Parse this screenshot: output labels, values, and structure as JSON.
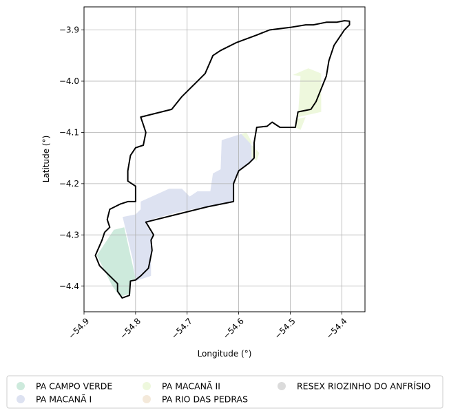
{
  "chart_data": {
    "type": "map",
    "xlabel": "Longitude (°)",
    "ylabel": "Latitude (°)",
    "xlim": [
      -54.9,
      -54.355
    ],
    "ylim": [
      -4.45,
      -3.855
    ],
    "xticks": [
      -54.9,
      -54.8,
      -54.7,
      -54.6,
      -54.5,
      -54.4
    ],
    "xtick_labels": [
      "−54.9",
      "−54.8",
      "−54.7",
      "−54.6",
      "−54.5",
      "−54.4"
    ],
    "yticks": [
      -3.9,
      -4.0,
      -4.1,
      -4.2,
      -4.3,
      -4.4
    ],
    "ytick_labels": [
      "−3.9",
      "−4.0",
      "−4.1",
      "−4.2",
      "−4.3",
      "−4.4"
    ],
    "grid": true,
    "legend_position": "bottom",
    "legend": [
      {
        "name": "PA CAMPO VERDE",
        "color": "#cdeadc"
      },
      {
        "name": "PA MACANÃ I",
        "color": "#dde2f1"
      },
      {
        "name": "PA MACANÃ II",
        "color": "#eef8dd"
      },
      {
        "name": "PA RIO DAS PEDRAS",
        "color": "#f4e9da"
      },
      {
        "name": "RESEX RIOZINHO DO ANFRÍSIO",
        "color": "#dbdbdb"
      }
    ],
    "regions": [
      {
        "name": "PA CAMPO VERDE",
        "color": "#cdeadc",
        "polygons": [
          [
            [
              -54.842,
              -4.29
            ],
            [
              -54.822,
              -4.285
            ],
            [
              -54.8,
              -4.385
            ],
            [
              -54.81,
              -4.39
            ],
            [
              -54.81,
              -4.415
            ],
            [
              -54.83,
              -4.42
            ],
            [
              -54.845,
              -4.4
            ],
            [
              -54.875,
              -4.34
            ]
          ]
        ]
      },
      {
        "name": "PA MACANÃ I",
        "color": "#dde2f1",
        "polygons": [
          [
            [
              -54.825,
              -4.265
            ],
            [
              -54.8,
              -4.26
            ],
            [
              -54.79,
              -4.25
            ],
            [
              -54.79,
              -4.235
            ],
            [
              -54.735,
              -4.21
            ],
            [
              -54.71,
              -4.21
            ],
            [
              -54.695,
              -4.225
            ],
            [
              -54.68,
              -4.215
            ],
            [
              -54.655,
              -4.215
            ],
            [
              -54.65,
              -4.18
            ],
            [
              -54.635,
              -4.172
            ],
            [
              -54.633,
              -4.115
            ],
            [
              -54.595,
              -4.103
            ],
            [
              -54.585,
              -4.104
            ],
            [
              -54.565,
              -4.15
            ],
            [
              -54.58,
              -4.16
            ],
            [
              -54.6,
              -4.175
            ],
            [
              -54.61,
              -4.2
            ],
            [
              -54.61,
              -4.235
            ],
            [
              -54.665,
              -4.245
            ],
            [
              -54.715,
              -4.255
            ],
            [
              -54.77,
              -4.27
            ],
            [
              -54.78,
              -4.28
            ],
            [
              -54.767,
              -4.3
            ],
            [
              -54.77,
              -4.33
            ],
            [
              -54.77,
              -4.38
            ],
            [
              -54.8,
              -4.39
            ],
            [
              -54.805,
              -4.35
            ]
          ]
        ]
      },
      {
        "name": "PA MACANÃ II",
        "color": "#eef8dd",
        "polygons": [
          [
            [
              -54.595,
              -4.103
            ],
            [
              -54.585,
              -4.1
            ],
            [
              -54.575,
              -4.118
            ],
            [
              -54.575,
              -4.15
            ],
            [
              -54.565,
              -4.155
            ],
            [
              -54.56,
              -4.14
            ]
          ],
          [
            [
              -54.495,
              -3.988
            ],
            [
              -54.465,
              -3.975
            ],
            [
              -54.44,
              -3.985
            ],
            [
              -54.44,
              -4.06
            ],
            [
              -54.485,
              -4.07
            ],
            [
              -54.48,
              -3.99
            ]
          ],
          [
            [
              -54.49,
              -4.075
            ],
            [
              -54.49,
              -4.09
            ],
            [
              -54.48,
              -4.095
            ],
            [
              -54.47,
              -4.07
            ]
          ]
        ]
      },
      {
        "name": "PA RIO DAS PEDRAS",
        "color": "#f4e9da",
        "polygons": []
      },
      {
        "name": "RESEX RIOZINHO DO ANFRÍSIO",
        "color": "#dbdbdb",
        "polygons": []
      }
    ],
    "boundary": [
      [
        -54.826,
        -4.423
      ],
      [
        -54.812,
        -4.418
      ],
      [
        -54.81,
        -4.39
      ],
      [
        -54.8,
        -4.388
      ],
      [
        -54.79,
        -4.38
      ],
      [
        -54.775,
        -4.365
      ],
      [
        -54.768,
        -4.33
      ],
      [
        -54.77,
        -4.31
      ],
      [
        -54.765,
        -4.3
      ],
      [
        -54.78,
        -4.275
      ],
      [
        -54.72,
        -4.26
      ],
      [
        -54.66,
        -4.245
      ],
      [
        -54.61,
        -4.235
      ],
      [
        -54.61,
        -4.2
      ],
      [
        -54.6,
        -4.175
      ],
      [
        -54.58,
        -4.16
      ],
      [
        -54.57,
        -4.15
      ],
      [
        -54.57,
        -4.12
      ],
      [
        -54.565,
        -4.09
      ],
      [
        -54.545,
        -4.088
      ],
      [
        -54.535,
        -4.08
      ],
      [
        -54.52,
        -4.09
      ],
      [
        -54.49,
        -4.09
      ],
      [
        -54.485,
        -4.06
      ],
      [
        -54.46,
        -4.055
      ],
      [
        -54.45,
        -4.04
      ],
      [
        -54.43,
        -3.99
      ],
      [
        -54.425,
        -3.96
      ],
      [
        -54.415,
        -3.93
      ],
      [
        -54.405,
        -3.915
      ],
      [
        -54.395,
        -3.9
      ],
      [
        -54.385,
        -3.89
      ],
      [
        -54.385,
        -3.883
      ],
      [
        -54.395,
        -3.882
      ],
      [
        -54.41,
        -3.885
      ],
      [
        -54.43,
        -3.885
      ],
      [
        -54.455,
        -3.89
      ],
      [
        -54.47,
        -3.89
      ],
      [
        -54.5,
        -3.895
      ],
      [
        -54.54,
        -3.9
      ],
      [
        -54.565,
        -3.91
      ],
      [
        -54.605,
        -3.925
      ],
      [
        -54.635,
        -3.94
      ],
      [
        -54.65,
        -3.95
      ],
      [
        -54.665,
        -3.985
      ],
      [
        -54.685,
        -4.005
      ],
      [
        -54.69,
        -4.01
      ],
      [
        -54.71,
        -4.03
      ],
      [
        -54.73,
        -4.055
      ],
      [
        -54.75,
        -4.06
      ],
      [
        -54.77,
        -4.065
      ],
      [
        -54.79,
        -4.07
      ],
      [
        -54.785,
        -4.085
      ],
      [
        -54.78,
        -4.1
      ],
      [
        -54.785,
        -4.125
      ],
      [
        -54.8,
        -4.13
      ],
      [
        -54.81,
        -4.145
      ],
      [
        -54.815,
        -4.175
      ],
      [
        -54.815,
        -4.195
      ],
      [
        -54.8,
        -4.205
      ],
      [
        -54.8,
        -4.22
      ],
      [
        -54.8,
        -4.235
      ],
      [
        -54.815,
        -4.235
      ],
      [
        -54.83,
        -4.24
      ],
      [
        -54.85,
        -4.25
      ],
      [
        -54.855,
        -4.27
      ],
      [
        -54.85,
        -4.285
      ],
      [
        -54.86,
        -4.295
      ],
      [
        -54.865,
        -4.31
      ],
      [
        -54.878,
        -4.34
      ],
      [
        -54.87,
        -4.36
      ],
      [
        -54.85,
        -4.38
      ],
      [
        -54.835,
        -4.395
      ],
      [
        -54.835,
        -4.41
      ],
      [
        -54.826,
        -4.423
      ]
    ]
  }
}
